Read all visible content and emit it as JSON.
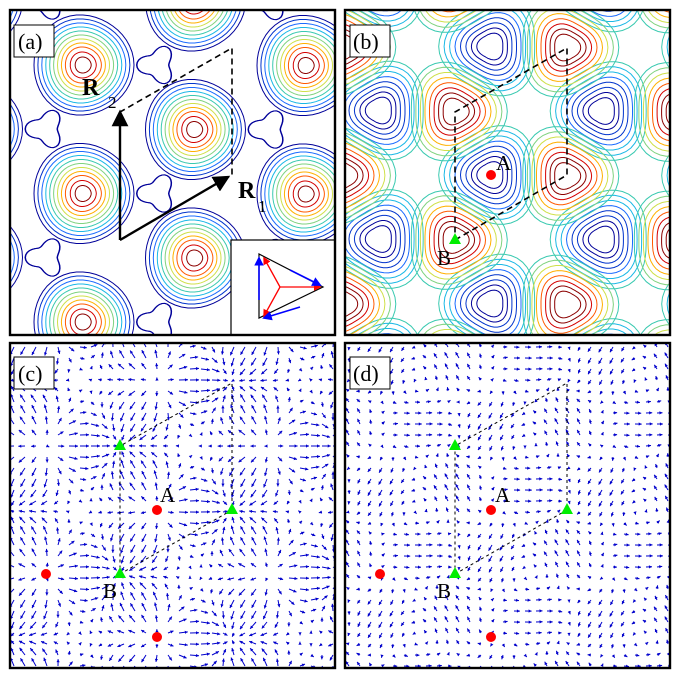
{
  "figure": {
    "panels": [
      {
        "id": "a",
        "tag": "(a)",
        "kind": "contour"
      },
      {
        "id": "b",
        "tag": "(b)",
        "kind": "contour"
      },
      {
        "id": "c",
        "tag": "(c)",
        "kind": "vector-field"
      },
      {
        "id": "d",
        "tag": "(d)",
        "kind": "vector-field"
      }
    ],
    "point_labels": {
      "A": "A",
      "B": "B"
    },
    "vector_labels": {
      "R1": {
        "main": "R",
        "sub": "1"
      },
      "R2": {
        "main": "R",
        "sub": "2"
      }
    },
    "colors": {
      "contour_scale": [
        "#000099",
        "#0033cc",
        "#1a6bff",
        "#1ab8e6",
        "#39c9b0",
        "#7fd27f",
        "#cfe04a",
        "#ffb000",
        "#ff5a00",
        "#d40000",
        "#8b0000"
      ],
      "arrow": "#0000cc",
      "site_A": "#ff0000",
      "site_B": "#00ee00",
      "inset_red": "#ff0000",
      "inset_blue": "#0000ff"
    }
  }
}
